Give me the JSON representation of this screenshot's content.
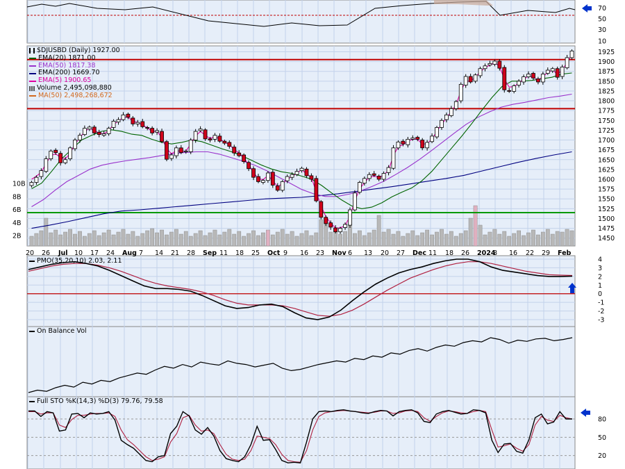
{
  "chart_data": {
    "type": "line",
    "symbol": "$DJUSBD",
    "interval": "(Daily)",
    "last_price": "1927.00",
    "x_tick_labels": [
      "20",
      "26",
      "Jul",
      "10",
      "17",
      "24",
      "Aug",
      "7",
      "14",
      "21",
      "28",
      "Sep",
      "11",
      "18",
      "25",
      "Oct",
      "9",
      "16",
      "23",
      "Nov",
      "6",
      "13",
      "20",
      "27",
      "Dec",
      "11",
      "18",
      "26",
      "2024",
      "8",
      "16",
      "22",
      "29",
      "Feb"
    ],
    "price_panel": {
      "y_ticks": [
        1450,
        1475,
        1500,
        1525,
        1550,
        1575,
        1600,
        1625,
        1650,
        1675,
        1700,
        1725,
        1750,
        1775,
        1800,
        1825,
        1850,
        1875,
        1900,
        1925
      ],
      "ylim": [
        1430,
        1940
      ],
      "volume_ticks": [
        "2B",
        "4B",
        "6B",
        "8B",
        "10B"
      ],
      "horizontal_lines": [
        {
          "value": 1905,
          "color": "#c00000"
        },
        {
          "value": 1780,
          "color": "#c00000"
        },
        {
          "value": 1515,
          "color": "#009900"
        }
      ],
      "legend": [
        {
          "text": "EMA(20) 1871.00",
          "color": "#006400"
        },
        {
          "text": "EMA(50) 1817.38",
          "color": "#9932cc"
        },
        {
          "text": "EMA(200) 1669.70",
          "color": "#000080"
        },
        {
          "text": "EMA(5) 1900.65",
          "color": "#e000a0"
        },
        {
          "text": "Volume 2,495,098,880",
          "color": "#000000"
        },
        {
          "text": "MA(50) 2,498,268,672",
          "color": "#d2691e"
        }
      ],
      "close_series": [
        1592,
        1605,
        1622,
        1652,
        1672,
        1668,
        1642,
        1650,
        1680,
        1700,
        1712,
        1730,
        1733,
        1718,
        1714,
        1716,
        1730,
        1748,
        1752,
        1764,
        1758,
        1741,
        1745,
        1734,
        1730,
        1718,
        1724,
        1696,
        1651,
        1662,
        1680,
        1668,
        1672,
        1700,
        1722,
        1728,
        1703,
        1700,
        1712,
        1697,
        1692,
        1684,
        1667,
        1660,
        1645,
        1627,
        1605,
        1594,
        1597,
        1616,
        1585,
        1572,
        1594,
        1607,
        1612,
        1620,
        1628,
        1609,
        1600,
        1545,
        1503,
        1487,
        1478,
        1466,
        1475,
        1485,
        1522,
        1565,
        1592,
        1602,
        1612,
        1610,
        1600,
        1615,
        1630,
        1680,
        1695,
        1690,
        1702,
        1705,
        1702,
        1680,
        1694,
        1710,
        1732,
        1750,
        1764,
        1780,
        1798,
        1842,
        1862,
        1848,
        1866,
        1882,
        1889,
        1895,
        1901,
        1883,
        1828,
        1824,
        1838,
        1850,
        1861,
        1868,
        1858,
        1848,
        1868,
        1878,
        1882,
        1860,
        1886,
        1910,
        1927
      ],
      "ema5": {
        "values": [
          1600,
          1608,
          1618,
          1640,
          1660,
          1665,
          1655,
          1652,
          1666,
          1690,
          1705,
          1722,
          1730,
          1724,
          1718,
          1716,
          1724,
          1740,
          1748,
          1758,
          1758,
          1748,
          1745,
          1738,
          1731,
          1722,
          1722,
          1706,
          1678,
          1665,
          1673,
          1671,
          1672,
          1690,
          1710,
          1722,
          1712,
          1704,
          1709,
          1702,
          1695,
          1688,
          1676,
          1667,
          1654,
          1638,
          1617,
          1602,
          1599,
          1610,
          1596,
          1582,
          1588,
          1600,
          1607,
          1616,
          1624,
          1614,
          1605,
          1568,
          1532,
          1505,
          1488,
          1476,
          1476,
          1482,
          1506,
          1545,
          1575,
          1592,
          1605,
          1608,
          1604,
          1611,
          1623,
          1660,
          1683,
          1688,
          1697,
          1702,
          1702,
          1689,
          1691,
          1702,
          1722,
          1740,
          1756,
          1773,
          1790,
          1825,
          1850,
          1850,
          1860,
          1874,
          1884,
          1891,
          1897,
          1888,
          1855,
          1835,
          1836,
          1845,
          1855,
          1863,
          1860,
          1852,
          1862,
          1872,
          1878,
          1868,
          1878,
          1898,
          1917
        ]
      },
      "ema20": {
        "values": [
          1576,
          1590,
          1620,
          1652,
          1676,
          1700,
          1712,
          1722,
          1726,
          1722,
          1715,
          1712,
          1702,
          1694,
          1690,
          1694,
          1700,
          1696,
          1687,
          1678,
          1670,
          1660,
          1648,
          1636,
          1626,
          1619,
          1615,
          1608,
          1600,
          1584,
          1565,
          1547,
          1532,
          1525,
          1529,
          1540,
          1555,
          1567,
          1578,
          1596,
          1620,
          1650,
          1680,
          1710,
          1742,
          1776,
          1808,
          1836,
          1850,
          1850,
          1852,
          1856,
          1860,
          1868,
          1871
        ]
      },
      "ema50": {
        "values": [
          1530,
          1548,
          1572,
          1594,
          1610,
          1626,
          1636,
          1642,
          1647,
          1651,
          1655,
          1660,
          1665,
          1668,
          1670,
          1670,
          1664,
          1655,
          1646,
          1636,
          1622,
          1606,
          1590,
          1574,
          1563,
          1556,
          1556,
          1562,
          1570,
          1582,
          1595,
          1612,
          1630,
          1650,
          1672,
          1695,
          1718,
          1740,
          1758,
          1772,
          1784,
          1791,
          1796,
          1802,
          1808,
          1812,
          1817
        ]
      },
      "ema200": {
        "values": [
          1475,
          1483,
          1492,
          1502,
          1512,
          1519,
          1522,
          1526,
          1530,
          1534,
          1538,
          1542,
          1546,
          1550,
          1552,
          1554,
          1558,
          1563,
          1569,
          1575,
          1581,
          1588,
          1595,
          1602,
          1610,
          1621,
          1632,
          1643,
          1653,
          1662,
          1670
        ]
      }
    },
    "pmo_panel": {
      "title": "PMO(35,20,10) 2.03, 2.11",
      "y_ticks": [
        -3,
        -2,
        -1,
        0,
        1,
        2,
        3,
        4
      ],
      "ylim": [
        -3.8,
        4.4
      ],
      "pmo": [
        2.8,
        3.1,
        3.4,
        3.6,
        3.7,
        3.5,
        3.2,
        2.7,
        2.1,
        1.5,
        0.9,
        0.6,
        0.6,
        0.5,
        0.3,
        -0.2,
        -0.8,
        -1.4,
        -1.7,
        -1.6,
        -1.3,
        -1.2,
        -1.5,
        -2.2,
        -2.8,
        -3.0,
        -2.7,
        -1.9,
        -0.8,
        0.2,
        1.1,
        1.8,
        2.4,
        2.8,
        3.1,
        3.5,
        3.8,
        4.0,
        4.0,
        3.7,
        3.1,
        2.7,
        2.5,
        2.3,
        2.1,
        2.0,
        2.0,
        2.03
      ],
      "signal": [
        2.6,
        2.9,
        3.2,
        3.4,
        3.5,
        3.5,
        3.3,
        3.0,
        2.6,
        2.1,
        1.6,
        1.2,
        0.9,
        0.7,
        0.5,
        0.2,
        -0.2,
        -0.7,
        -1.1,
        -1.3,
        -1.3,
        -1.3,
        -1.4,
        -1.7,
        -2.1,
        -2.5,
        -2.6,
        -2.4,
        -1.9,
        -1.2,
        -0.4,
        0.4,
        1.1,
        1.8,
        2.3,
        2.8,
        3.2,
        3.5,
        3.7,
        3.7,
        3.5,
        3.2,
        2.9,
        2.6,
        2.4,
        2.2,
        2.15,
        2.11
      ],
      "zero_line": 0
    },
    "obv_panel": {
      "title": "On Balance Vol",
      "values": [
        10,
        14,
        12,
        18,
        22,
        19,
        27,
        24,
        30,
        28,
        34,
        38,
        42,
        40,
        47,
        53,
        50,
        56,
        52,
        60,
        57,
        55,
        62,
        58,
        56,
        52,
        55,
        58,
        50,
        46,
        48,
        52,
        56,
        59,
        62,
        60,
        66,
        64,
        70,
        68,
        75,
        73,
        79,
        82,
        78,
        84,
        88,
        86,
        92,
        95,
        93,
        100,
        97,
        91,
        96,
        94,
        98,
        99,
        95,
        97,
        100
      ]
    },
    "sto_panel": {
      "title": "Full STO %K(14,3) %D(3) 79.76, 79.58",
      "y_ticks": [
        20,
        50,
        80
      ],
      "ylim": [
        -2,
        105
      ],
      "k": [
        93,
        93,
        84,
        92,
        90,
        60,
        62,
        88,
        89,
        82,
        90,
        88,
        89,
        92,
        78,
        45,
        38,
        32,
        22,
        12,
        10,
        18,
        20,
        56,
        68,
        92,
        85,
        62,
        55,
        66,
        52,
        28,
        15,
        12,
        10,
        18,
        38,
        68,
        45,
        46,
        30,
        12,
        8,
        9,
        8,
        42,
        80,
        92,
        93,
        92,
        94,
        95,
        93,
        92,
        90,
        89,
        92,
        94,
        93,
        85,
        92,
        94,
        95,
        90,
        76,
        74,
        88,
        92,
        94,
        91,
        88,
        89,
        95,
        94,
        90,
        45,
        25,
        39,
        40,
        27,
        24,
        46,
        82,
        88,
        72,
        75,
        92,
        80,
        80
      ],
      "d": [
        92,
        92,
        88,
        90,
        90,
        70,
        66,
        79,
        86,
        86,
        88,
        89,
        89,
        90,
        84,
        62,
        46,
        38,
        28,
        18,
        12,
        14,
        18,
        42,
        56,
        82,
        86,
        70,
        60,
        62,
        56,
        38,
        22,
        14,
        12,
        14,
        28,
        52,
        50,
        48,
        38,
        22,
        12,
        10,
        9,
        28,
        62,
        84,
        90,
        92,
        93,
        94,
        93,
        92,
        91,
        90,
        91,
        93,
        93,
        89,
        90,
        93,
        94,
        92,
        82,
        76,
        84,
        90,
        93,
        92,
        90,
        89,
        92,
        94,
        92,
        62,
        34,
        36,
        39,
        32,
        27,
        38,
        70,
        84,
        78,
        76,
        86,
        82,
        80
      ]
    },
    "colors": {
      "background": "#ffffff",
      "panel_bg": "#e6eef9",
      "up_candle": "#ffffff",
      "down_candle": "#d0021b",
      "arrow": "#0033cc"
    }
  }
}
